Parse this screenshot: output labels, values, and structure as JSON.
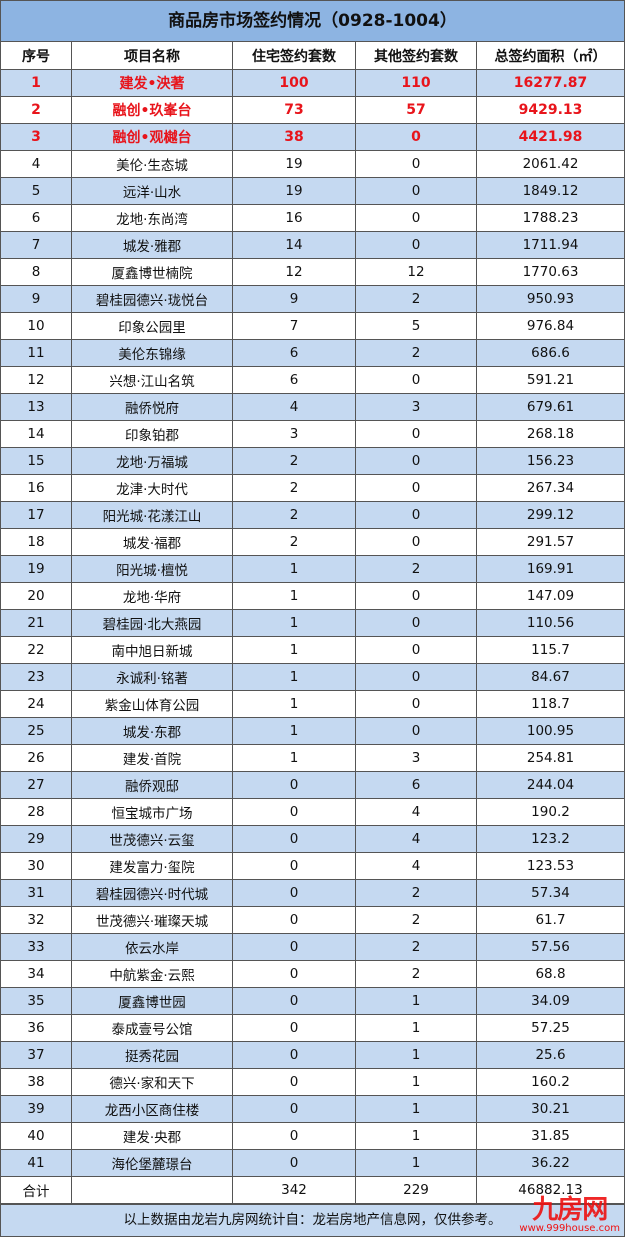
{
  "title": "商品房市场签约情况（0928-1004）",
  "headers": [
    "序号",
    "项目名称",
    "住宅签约套数",
    "其他签约套数",
    "总签约面积（㎡）"
  ],
  "rows": [
    [
      "1",
      "建发•泱著",
      "100",
      "110",
      "16277.87"
    ],
    [
      "2",
      "融创•玖峯台",
      "73",
      "57",
      "9429.13"
    ],
    [
      "3",
      "融创•观樾台",
      "38",
      "0",
      "4421.98"
    ],
    [
      "4",
      "美伦·生态城",
      "19",
      "0",
      "2061.42"
    ],
    [
      "5",
      "远洋·山水",
      "19",
      "0",
      "1849.12"
    ],
    [
      "6",
      "龙地·东尚湾",
      "16",
      "0",
      "1788.23"
    ],
    [
      "7",
      "城发·雅郡",
      "14",
      "0",
      "1711.94"
    ],
    [
      "8",
      "厦鑫博世楠院",
      "12",
      "12",
      "1770.63"
    ],
    [
      "9",
      "碧桂园德兴·珑悦台",
      "9",
      "2",
      "950.93"
    ],
    [
      "10",
      "印象公园里",
      "7",
      "5",
      "976.84"
    ],
    [
      "11",
      "美伦东锦缘",
      "6",
      "2",
      "686.6"
    ],
    [
      "12",
      "兴想·江山名筑",
      "6",
      "0",
      "591.21"
    ],
    [
      "13",
      "融侨悦府",
      "4",
      "3",
      "679.61"
    ],
    [
      "14",
      "印象铂郡",
      "3",
      "0",
      "268.18"
    ],
    [
      "15",
      "龙地·万福城",
      "2",
      "0",
      "156.23"
    ],
    [
      "16",
      "龙津·大时代",
      "2",
      "0",
      "267.34"
    ],
    [
      "17",
      "阳光城·花漾江山",
      "2",
      "0",
      "299.12"
    ],
    [
      "18",
      "城发·福郡",
      "2",
      "0",
      "291.57"
    ],
    [
      "19",
      "阳光城·檀悦",
      "1",
      "2",
      "169.91"
    ],
    [
      "20",
      "龙地·华府",
      "1",
      "0",
      "147.09"
    ],
    [
      "21",
      "碧桂园·北大燕园",
      "1",
      "0",
      "110.56"
    ],
    [
      "22",
      "南中旭日新城",
      "1",
      "0",
      "115.7"
    ],
    [
      "23",
      "永诚利·铭著",
      "1",
      "0",
      "84.67"
    ],
    [
      "24",
      "紫金山体育公园",
      "1",
      "0",
      "118.7"
    ],
    [
      "25",
      "城发·东郡",
      "1",
      "0",
      "100.95"
    ],
    [
      "26",
      "建发·首院",
      "1",
      "3",
      "254.81"
    ],
    [
      "27",
      "融侨观邸",
      "0",
      "6",
      "244.04"
    ],
    [
      "28",
      "恒宝城市广场",
      "0",
      "4",
      "190.2"
    ],
    [
      "29",
      "世茂德兴·云玺",
      "0",
      "4",
      "123.2"
    ],
    [
      "30",
      "建发富力·玺院",
      "0",
      "4",
      "123.53"
    ],
    [
      "31",
      "碧桂园德兴·时代城",
      "0",
      "2",
      "57.34"
    ],
    [
      "32",
      "世茂德兴·璀璨天城",
      "0",
      "2",
      "61.7"
    ],
    [
      "33",
      "依云水岸",
      "0",
      "2",
      "57.56"
    ],
    [
      "34",
      "中航紫金·云熙",
      "0",
      "2",
      "68.8"
    ],
    [
      "35",
      "厦鑫博世园",
      "0",
      "1",
      "34.09"
    ],
    [
      "36",
      "泰成壹号公馆",
      "0",
      "1",
      "57.25"
    ],
    [
      "37",
      "挺秀花园",
      "0",
      "1",
      "25.6"
    ],
    [
      "38",
      "德兴·家和天下",
      "0",
      "1",
      "160.2"
    ],
    [
      "39",
      "龙西小区商住楼",
      "0",
      "1",
      "30.21"
    ],
    [
      "40",
      "建发·央郡",
      "0",
      "1",
      "31.85"
    ],
    [
      "41",
      "海伦堡麓璟台",
      "0",
      "1",
      "36.22"
    ]
  ],
  "total": [
    "合计",
    "",
    "342",
    "229",
    "46882.13"
  ],
  "footer": "以上数据由龙岩九房网统计自：龙岩房地产信息网，仅供参考。",
  "watermark": {
    "logo": "九房网",
    "url": "www.999house.com"
  },
  "colors": {
    "title_bg": "#8db4e2",
    "stripe": "#c5d9f1",
    "highlight_text": "#e8141b"
  }
}
